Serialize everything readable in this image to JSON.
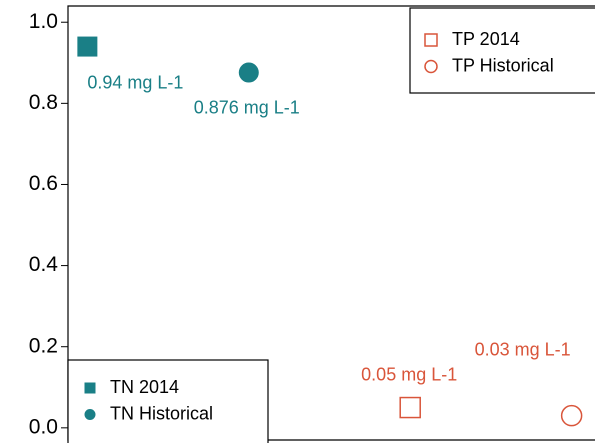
{
  "chart_data": {
    "type": "scatter",
    "ylim": [
      -0.03,
      1.04
    ],
    "yticks": [
      {
        "value": 0,
        "label": "0.0"
      },
      0.2,
      0.4,
      0.6,
      0.8,
      {
        "value": 1,
        "label": "1.0"
      }
    ],
    "xlim": [
      0.88,
      4.12
    ],
    "series": [
      {
        "name": "TN 2014",
        "color": "#1a7f86",
        "marker": "square",
        "filled": true,
        "legend": "bottom left",
        "x": [
          1
        ],
        "values": [
          0.94
        ],
        "value_labels": [
          "0.94 mg L-1"
        ]
      },
      {
        "name": "TN Historical",
        "color": "#1a7f86",
        "marker": "circle",
        "filled": true,
        "legend": "bottom left",
        "x": [
          2
        ],
        "values": [
          0.876
        ],
        "value_labels": [
          "0.876 mg L-1"
        ]
      },
      {
        "name": "TP 2014",
        "color": "#d9553a",
        "marker": "square",
        "filled": false,
        "legend": "top right",
        "x": [
          3
        ],
        "values": [
          0.05
        ],
        "value_labels": [
          "0.05 mg L-1"
        ]
      },
      {
        "name": "TP Historical",
        "color": "#d9553a",
        "marker": "circle",
        "filled": false,
        "legend": "top right",
        "x": [
          4
        ],
        "values": [
          0.03
        ],
        "value_labels": [
          "0.03 mg L-1"
        ]
      }
    ]
  }
}
